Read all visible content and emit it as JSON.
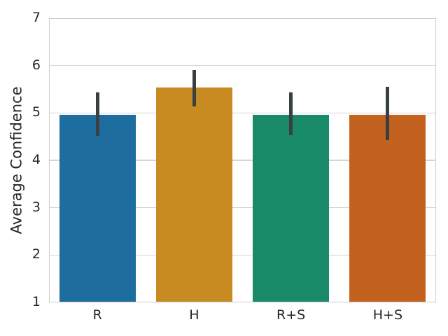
{
  "chart_data": {
    "type": "bar",
    "categories": [
      "R",
      "H",
      "R+S",
      "H+S"
    ],
    "values": [
      4.96,
      5.53,
      4.96,
      4.96
    ],
    "error_bars": [
      [
        4.51,
        5.44
      ],
      [
        5.14,
        5.91
      ],
      [
        4.53,
        5.44
      ],
      [
        4.43,
        5.55
      ]
    ],
    "title": "",
    "xlabel": "",
    "ylabel": "Average Confidence",
    "ylim": [
      1,
      7
    ],
    "yticks": [
      1,
      2,
      3,
      4,
      5,
      6,
      7
    ],
    "grid": true,
    "legend": "none",
    "bar_width_fraction": 0.79,
    "bar_colors": [
      "#1d6e9e",
      "#c78b22",
      "#188a68",
      "#c2621e"
    ],
    "errorbar_color": "#3a3f42",
    "grid_color": "#d5d5d5",
    "spine_color": "#cbcbcb",
    "text_color": "#262626",
    "background_color": "#ffffff"
  }
}
